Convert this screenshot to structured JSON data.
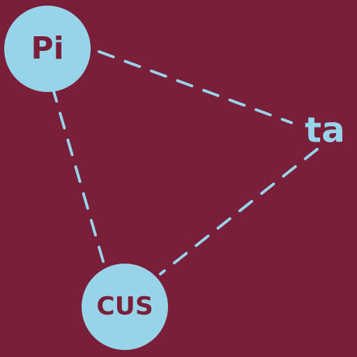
{
  "diagram": {
    "nodes": [
      {
        "id": "pi",
        "label": "Pi",
        "shape": "circle"
      },
      {
        "id": "ta",
        "label": "ta",
        "shape": "text"
      },
      {
        "id": "cus",
        "label": "CUS",
        "shape": "circle"
      }
    ],
    "edges": [
      {
        "from": "pi",
        "to": "ta",
        "style": "dashed"
      },
      {
        "from": "ta",
        "to": "cus",
        "style": "dashed"
      },
      {
        "from": "pi",
        "to": "cus",
        "style": "dashed"
      }
    ]
  },
  "colors": {
    "background": "#7a1f3a",
    "accent": "#97d3e9"
  }
}
